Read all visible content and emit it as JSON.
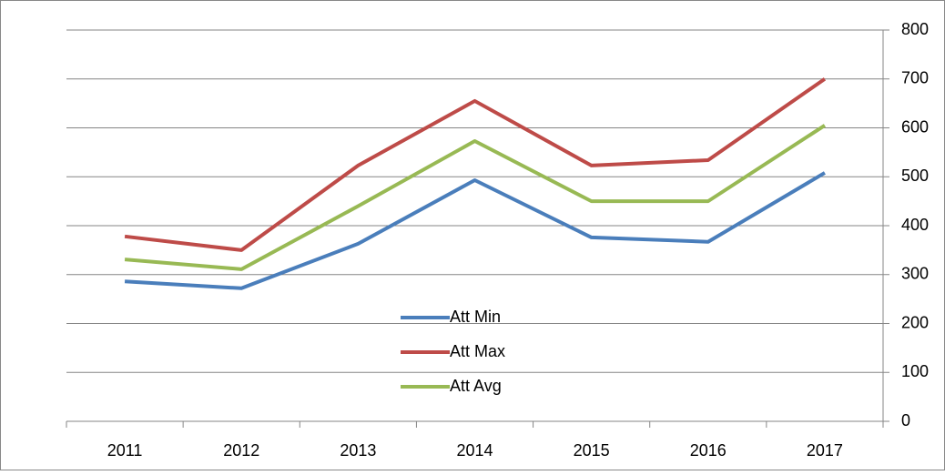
{
  "chart_data": {
    "type": "line",
    "categories": [
      "2011",
      "2012",
      "2013",
      "2014",
      "2015",
      "2016",
      "2017"
    ],
    "series": [
      {
        "name": "Att Min",
        "color": "#4a7ebb",
        "values": [
          286,
          272,
          363,
          493,
          376,
          367,
          508
        ]
      },
      {
        "name": "Att Max",
        "color": "#be4b48",
        "values": [
          378,
          350,
          523,
          655,
          523,
          534,
          700
        ]
      },
      {
        "name": "Att Avg",
        "color": "#98b954",
        "values": [
          331,
          311,
          440,
          573,
          450,
          450,
          605
        ]
      }
    ],
    "ylim": [
      0,
      800
    ],
    "yticks": [
      0,
      100,
      200,
      300,
      400,
      500,
      600,
      700,
      800
    ],
    "grid": true,
    "y_axis_side": "right",
    "legend": "center"
  }
}
